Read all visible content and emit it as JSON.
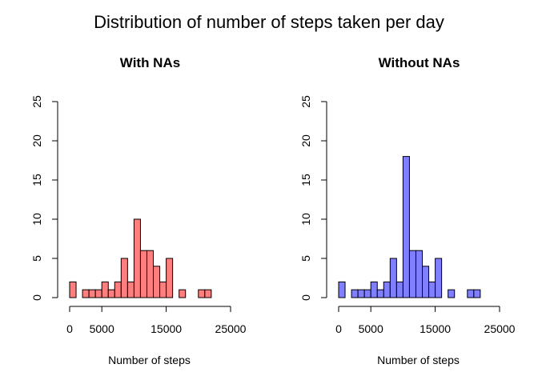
{
  "page": {
    "title": "Distribution of number of steps taken per day"
  },
  "chart_data": [
    {
      "type": "bar",
      "subtype": "histogram",
      "title": "With NAs",
      "xlabel": "Number of steps",
      "ylabel": "",
      "bin_width": 1000,
      "bin_edges_start": [
        0,
        1000,
        2000,
        3000,
        4000,
        5000,
        6000,
        7000,
        8000,
        9000,
        10000,
        11000,
        12000,
        13000,
        14000,
        15000,
        16000,
        17000,
        18000,
        19000,
        20000,
        21000
      ],
      "values": [
        2,
        0,
        1,
        1,
        1,
        2,
        1,
        2,
        5,
        2,
        10,
        6,
        6,
        4,
        2,
        5,
        0,
        1,
        0,
        0,
        1,
        1
      ],
      "xlim": [
        0,
        25000
      ],
      "ylim": [
        0,
        25
      ],
      "x_ticks": [
        "0",
        "5000",
        "15000",
        "25000"
      ],
      "x_tick_values": [
        0,
        5000,
        15000,
        25000
      ],
      "y_ticks": [
        "0",
        "5",
        "10",
        "15",
        "20",
        "25"
      ],
      "y_tick_values": [
        0,
        5,
        10,
        15,
        20,
        25
      ],
      "color": "#ff7f7f",
      "grid": false
    },
    {
      "type": "bar",
      "subtype": "histogram",
      "title": "Without NAs",
      "xlabel": "Number of steps",
      "ylabel": "",
      "bin_width": 1000,
      "bin_edges_start": [
        0,
        1000,
        2000,
        3000,
        4000,
        5000,
        6000,
        7000,
        8000,
        9000,
        10000,
        11000,
        12000,
        13000,
        14000,
        15000,
        16000,
        17000,
        18000,
        19000,
        20000,
        21000
      ],
      "values": [
        2,
        0,
        1,
        1,
        1,
        2,
        1,
        2,
        5,
        2,
        18,
        6,
        6,
        4,
        2,
        5,
        0,
        1,
        0,
        0,
        1,
        1
      ],
      "xlim": [
        0,
        25000
      ],
      "ylim": [
        0,
        25
      ],
      "x_ticks": [
        "0",
        "5000",
        "15000",
        "25000"
      ],
      "x_tick_values": [
        0,
        5000,
        15000,
        25000
      ],
      "y_ticks": [
        "0",
        "5",
        "10",
        "15",
        "20",
        "25"
      ],
      "y_tick_values": [
        0,
        5,
        10,
        15,
        20,
        25
      ],
      "color": "#7f7fff",
      "grid": false
    }
  ]
}
